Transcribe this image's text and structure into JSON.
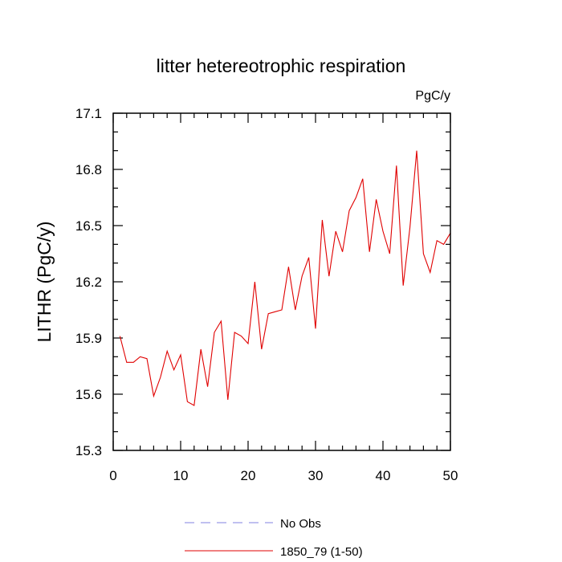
{
  "chart_data": {
    "type": "line",
    "title": "litter hetereotrophic respiration",
    "units": "PgC/y",
    "xlabel": "",
    "ylabel": "LITHR  (PgC/y)",
    "xlim": [
      0,
      50
    ],
    "ylim": [
      15.3,
      17.1
    ],
    "x_ticks": [
      0,
      10,
      20,
      30,
      40,
      50
    ],
    "y_ticks": [
      15.3,
      15.6,
      15.9,
      16.2,
      16.5,
      16.8,
      17.1
    ],
    "y_tick_labels": [
      "15.3",
      "15.6",
      "15.9",
      "16.2",
      "16.5",
      "16.8",
      "17.1"
    ],
    "grid": false,
    "legend_position": "bottom",
    "series": [
      {
        "name": "No Obs",
        "color": "#8080e0",
        "style": "dashed",
        "x": [],
        "values": []
      },
      {
        "name": "1850_79 (1-50)",
        "color": "#e00000",
        "style": "solid",
        "x": [
          1,
          2,
          3,
          4,
          5,
          6,
          7,
          8,
          9,
          10,
          11,
          12,
          13,
          14,
          15,
          16,
          17,
          18,
          19,
          20,
          21,
          22,
          23,
          24,
          25,
          26,
          27,
          28,
          29,
          30,
          31,
          32,
          33,
          34,
          35,
          36,
          37,
          38,
          39,
          40,
          41,
          42,
          43,
          44,
          45,
          46,
          47,
          48,
          49,
          50
        ],
        "values": [
          15.91,
          15.77,
          15.77,
          15.8,
          15.79,
          15.59,
          15.69,
          15.83,
          15.73,
          15.81,
          15.56,
          15.54,
          15.84,
          15.64,
          15.93,
          15.99,
          15.57,
          15.93,
          15.91,
          15.87,
          16.2,
          15.84,
          16.03,
          16.04,
          16.05,
          16.28,
          16.05,
          16.23,
          16.33,
          15.95,
          16.53,
          16.23,
          16.47,
          16.36,
          16.58,
          16.65,
          16.75,
          16.36,
          16.64,
          16.47,
          16.35,
          16.82,
          16.18,
          16.49,
          16.9,
          16.35,
          16.25,
          16.42,
          16.4,
          16.46
        ]
      }
    ]
  }
}
